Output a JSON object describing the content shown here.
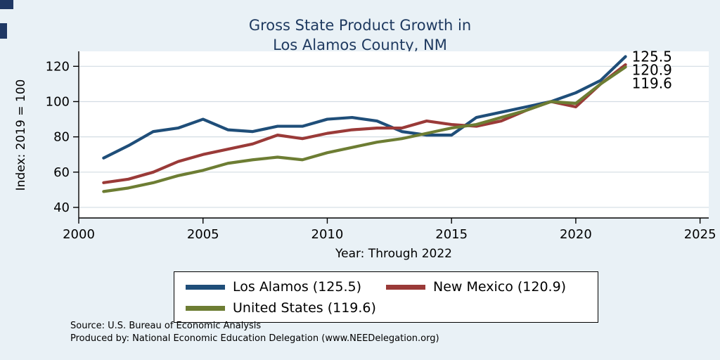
{
  "colors": {
    "background": "#e9f1f6",
    "title": "#1f3a60",
    "decor": "#1f3864",
    "gridline": "#d3dce3",
    "axis": "#000000"
  },
  "title": {
    "line1": "Gross State Product Growth in",
    "line2": "Los Alamos County, NM"
  },
  "chart_data": {
    "type": "line",
    "title": "Gross State Product Growth in Los Alamos County, NM",
    "xlabel": "Year: Through 2022",
    "ylabel": "Index: 2019 = 100",
    "x_ticks": [
      2000,
      2005,
      2010,
      2015,
      2020,
      2025
    ],
    "y_ticks": [
      40,
      60,
      80,
      100,
      120
    ],
    "xlim": [
      2000,
      2025.35
    ],
    "ylim": [
      34,
      128.5
    ],
    "grid": true,
    "legend_position": "bottom",
    "x": [
      2001,
      2002,
      2003,
      2004,
      2005,
      2006,
      2007,
      2008,
      2009,
      2010,
      2011,
      2012,
      2013,
      2014,
      2015,
      2016,
      2017,
      2018,
      2019,
      2020,
      2021,
      2022
    ],
    "series": [
      {
        "name": "Los Alamos",
        "legend_label": "Los Alamos  (125.5)",
        "end_label": "125.5",
        "color": "#1f4e79",
        "values": [
          68,
          75,
          83,
          85,
          90,
          84,
          83,
          86,
          86,
          90,
          91,
          89,
          83,
          81,
          81,
          91,
          94,
          97,
          100,
          105,
          112,
          125.5
        ]
      },
      {
        "name": "New Mexico",
        "legend_label": "New Mexico (120.9)",
        "end_label": "120.9",
        "color": "#9a3a38",
        "values": [
          54,
          56,
          60,
          66,
          70,
          73,
          76,
          81,
          79,
          82,
          84,
          85,
          85,
          89,
          87,
          86,
          89,
          95,
          100,
          97,
          110,
          120.9
        ]
      },
      {
        "name": "United States",
        "legend_label": "United States (119.6)",
        "end_label": "119.6",
        "color": "#6d7d33",
        "values": [
          49,
          51,
          54,
          58,
          61,
          65,
          67,
          68.5,
          67,
          71,
          74,
          77,
          79,
          82,
          85,
          87,
          91,
          95,
          100,
          99,
          110,
          119.6
        ]
      }
    ]
  },
  "footer": {
    "source": "Source: U.S. Bureau of Economic Analysis",
    "produced": "Produced by: National Economic Education Delegation (www.NEEDelegation.org)"
  }
}
